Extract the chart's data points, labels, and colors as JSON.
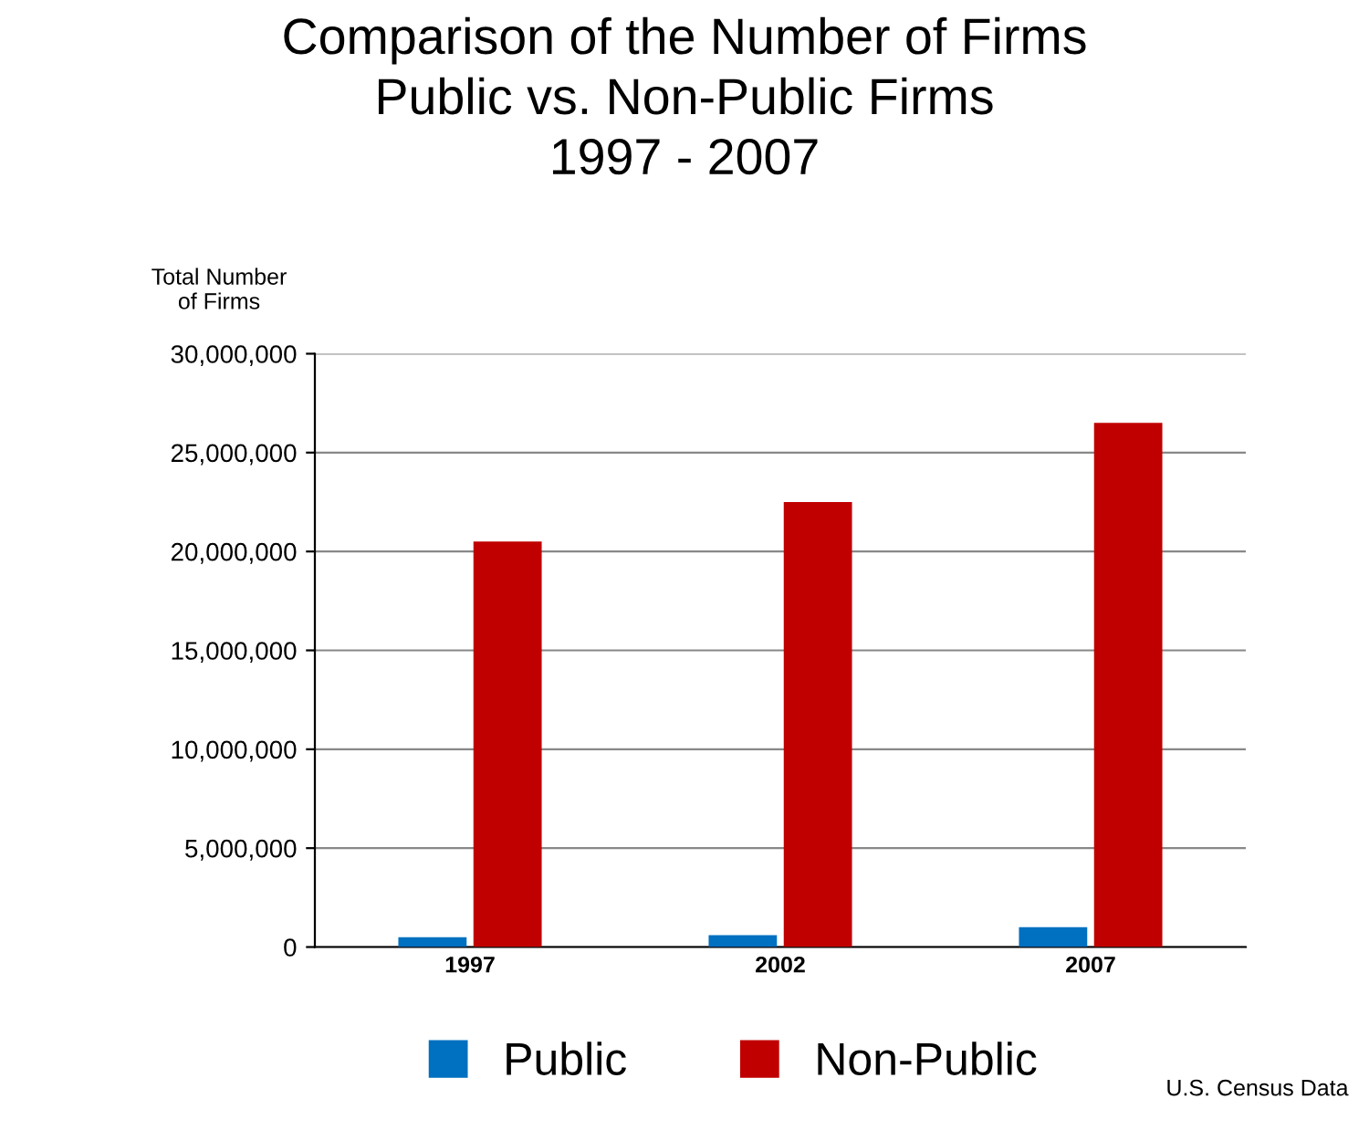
{
  "chart_data": {
    "type": "bar",
    "title": "Comparison of the Number of Firms\nPublic vs. Non-Public Firms\n1997 - 2007",
    "ylabel": "Total Number\nof Firms",
    "categories": [
      "1997",
      "2002",
      "2007"
    ],
    "series": [
      {
        "name": "Public",
        "color": "#0070c0",
        "values": [
          500000,
          600000,
          1000000
        ]
      },
      {
        "name": "Non-Public",
        "color": "#c00000",
        "values": [
          20500000,
          22500000,
          26500000
        ]
      }
    ],
    "ylim": [
      0,
      30000000
    ],
    "yticks": [
      {
        "value": 0,
        "label": "0"
      },
      {
        "value": 5000000,
        "label": "5,000,000"
      },
      {
        "value": 10000000,
        "label": "10,000,000"
      },
      {
        "value": 15000000,
        "label": "15,000,000"
      },
      {
        "value": 20000000,
        "label": "20,000,000"
      },
      {
        "value": 25000000,
        "label": "25,000,000"
      },
      {
        "value": 30000000,
        "label": "30,000,000"
      }
    ],
    "grid": "y",
    "legend": "bottom",
    "annotations": [
      "U.S. Census Data"
    ]
  }
}
